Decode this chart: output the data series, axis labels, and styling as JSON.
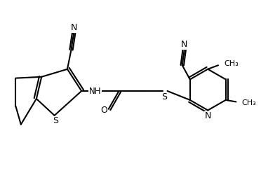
{
  "bg_color": "#ffffff",
  "line_color": "#000000",
  "lw": 1.5,
  "figsize": [
    3.72,
    2.6
  ],
  "dpi": 100,
  "xlim": [
    0,
    10
  ],
  "ylim": [
    0,
    7
  ]
}
